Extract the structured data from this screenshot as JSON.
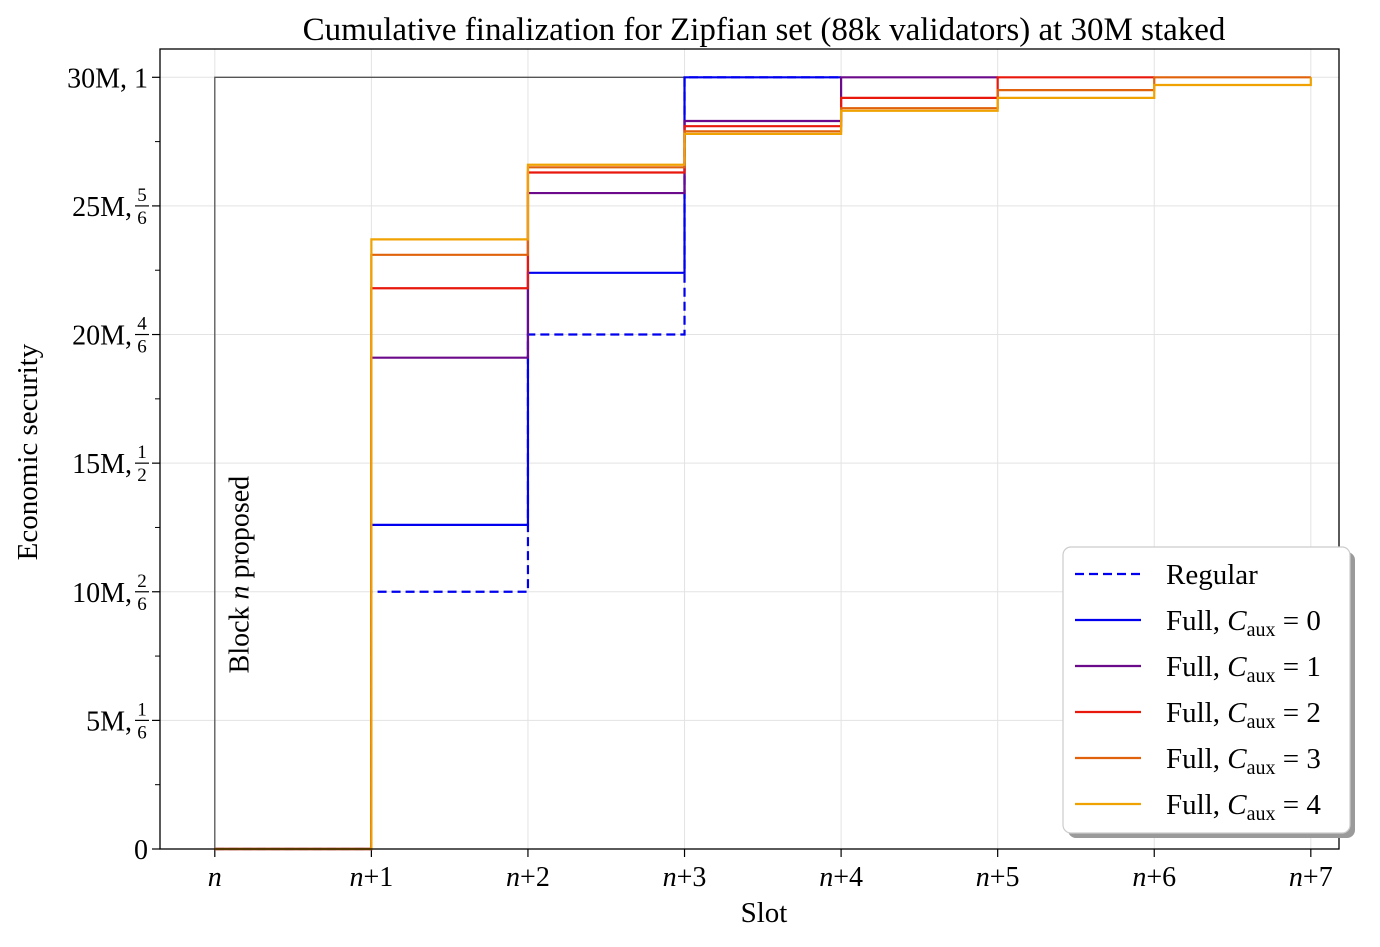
{
  "chart_data": {
    "type": "line",
    "step": "post",
    "title": "Cumulative finalization for Zipfian set (88k validators) at 30M staked",
    "xlabel": "Slot",
    "ylabel": "Economic security",
    "x_ticks": [
      {
        "x": 0,
        "var": "n",
        "suffix": ""
      },
      {
        "x": 1,
        "var": "n",
        "suffix": "+1"
      },
      {
        "x": 2,
        "var": "n",
        "suffix": "+2"
      },
      {
        "x": 3,
        "var": "n",
        "suffix": "+3"
      },
      {
        "x": 4,
        "var": "n",
        "suffix": "+4"
      },
      {
        "x": 5,
        "var": "n",
        "suffix": "+5"
      },
      {
        "x": 6,
        "var": "n",
        "suffix": "+6"
      },
      {
        "x": 7,
        "var": "n",
        "suffix": "+7"
      }
    ],
    "y_ticks": [
      {
        "y": 0,
        "text": "0",
        "num": "",
        "den": ""
      },
      {
        "y": 5,
        "text": "5M, ",
        "num": "1",
        "den": "6"
      },
      {
        "y": 10,
        "text": "10M, ",
        "num": "2",
        "den": "6"
      },
      {
        "y": 15,
        "text": "15M, ",
        "num": "1",
        "den": "2"
      },
      {
        "y": 20,
        "text": "20M, ",
        "num": "4",
        "den": "6"
      },
      {
        "y": 25,
        "text": "25M, ",
        "num": "5",
        "den": "6"
      },
      {
        "y": 30,
        "text": "30M, 1",
        "num": "",
        "den": ""
      }
    ],
    "xlim": [
      -0.35,
      7.18
    ],
    "ylim": [
      0,
      31.1
    ],
    "grid": true,
    "minor_y_step": 2.5,
    "annotation": {
      "prefix": "Block ",
      "var": "n",
      "suffix": " proposed",
      "x": 0.1,
      "y": 13
    },
    "legend": {
      "placement": "lower right"
    },
    "reference_line": {
      "x": [
        0,
        0,
        7
      ],
      "y": [
        0,
        30,
        30
      ],
      "color": "#555555"
    },
    "series": [
      {
        "name": "Regular",
        "style": "dashed",
        "color": "#0000ee",
        "x": [
          0,
          1,
          2,
          3,
          4
        ],
        "y": [
          0,
          10,
          20,
          30,
          30
        ]
      },
      {
        "name": "Full, C_aux = 0",
        "legend_parts": {
          "prefix": "Full, ",
          "var": "C",
          "sub": "aux",
          "suffix": " = 0"
        },
        "style": "solid",
        "color": "#0000ee",
        "x": [
          0,
          1,
          2,
          3,
          4
        ],
        "y": [
          0,
          12.6,
          22.4,
          30,
          30
        ]
      },
      {
        "name": "Full, C_aux = 1",
        "legend_parts": {
          "prefix": "Full, ",
          "var": "C",
          "sub": "aux",
          "suffix": " = 1"
        },
        "style": "solid",
        "color": "#6b0a8a",
        "x": [
          0,
          1,
          2,
          3,
          4,
          5
        ],
        "y": [
          0,
          19.1,
          25.5,
          28.3,
          30,
          30
        ]
      },
      {
        "name": "Full, C_aux = 2",
        "legend_parts": {
          "prefix": "Full, ",
          "var": "C",
          "sub": "aux",
          "suffix": " = 2"
        },
        "style": "solid",
        "color": "#e8180c",
        "x": [
          0,
          1,
          2,
          3,
          4,
          5,
          6
        ],
        "y": [
          0,
          21.8,
          26.3,
          28.1,
          29.2,
          30,
          30
        ]
      },
      {
        "name": "Full, C_aux = 3",
        "legend_parts": {
          "prefix": "Full, ",
          "var": "C",
          "sub": "aux",
          "suffix": " = 3"
        },
        "style": "solid",
        "color": "#e0620a",
        "x": [
          0,
          1,
          2,
          3,
          4,
          5,
          6,
          7
        ],
        "y": [
          0,
          23.1,
          26.5,
          27.9,
          28.8,
          29.5,
          30,
          30
        ]
      },
      {
        "name": "Full, C_aux = 4",
        "legend_parts": {
          "prefix": "Full, ",
          "var": "C",
          "sub": "aux",
          "suffix": " = 4"
        },
        "style": "solid",
        "color": "#f0a202",
        "x": [
          0,
          1,
          2,
          3,
          4,
          5,
          6,
          7
        ],
        "y": [
          0,
          23.7,
          26.6,
          27.8,
          28.7,
          29.2,
          29.7,
          30
        ]
      }
    ]
  }
}
